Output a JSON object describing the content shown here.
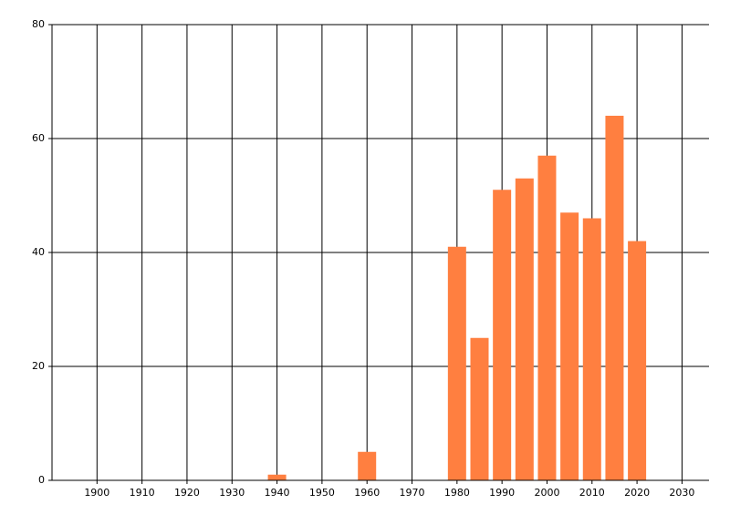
{
  "chart_data": {
    "type": "bar",
    "x": [
      1940,
      1960,
      1980,
      1985,
      1990,
      1995,
      2000,
      2005,
      2010,
      2015,
      2020
    ],
    "values": [
      1,
      5,
      41,
      25,
      51,
      53,
      57,
      47,
      46,
      64,
      42
    ],
    "color": "#ff7f40",
    "xlim": [
      1890,
      2036
    ],
    "xticks": [
      1900,
      1910,
      1920,
      1930,
      1940,
      1950,
      1960,
      1970,
      1980,
      1990,
      2000,
      2010,
      2020,
      2030
    ],
    "ylim": [
      0,
      80
    ],
    "yticks": [
      0,
      20,
      40,
      60,
      80
    ],
    "grid": true
  }
}
